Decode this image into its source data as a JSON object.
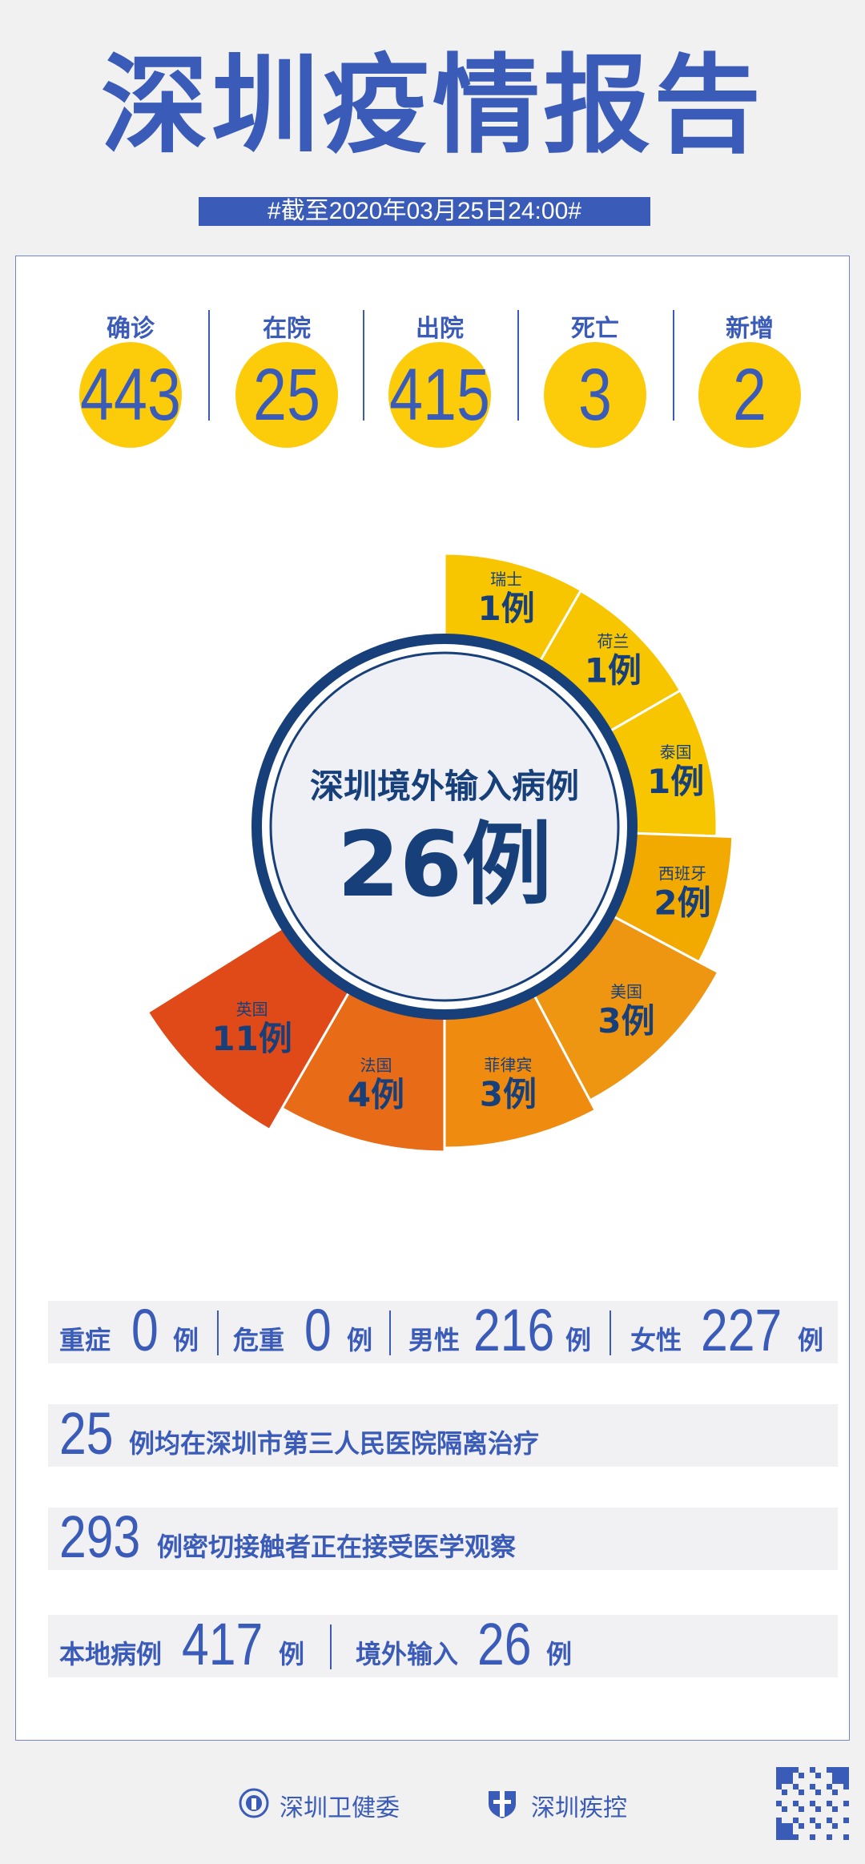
{
  "header": {
    "title": "深圳疫情报告",
    "date": "#截至2020年03月25日24:00#"
  },
  "stats": [
    {
      "label": "确诊",
      "value": "443"
    },
    {
      "label": "在院",
      "value": "25"
    },
    {
      "label": "出院",
      "value": "415"
    },
    {
      "label": "死亡",
      "value": "3"
    },
    {
      "label": "新增",
      "value": "2"
    }
  ],
  "chart_data": {
    "type": "pie",
    "title": "深圳境外输入病例",
    "total": "26例",
    "unit": "例",
    "categories": [
      "瑞士",
      "荷兰",
      "泰国",
      "西班牙",
      "美国",
      "菲律宾",
      "法国",
      "英国"
    ],
    "values": [
      1,
      1,
      1,
      2,
      3,
      3,
      4,
      11
    ],
    "colors": [
      "#f8c600",
      "#f8c600",
      "#f8c600",
      "#f2a900",
      "#ee9612",
      "#ef8c10",
      "#e86b18",
      "#e04a18"
    ],
    "center_color": "#173f7a"
  },
  "rows": {
    "severity": {
      "l1": "重症",
      "v1": "0",
      "u1": "例",
      "l2": "危重",
      "v2": "0",
      "u2": "例",
      "l3": "男性",
      "v3": "216",
      "u3": "例",
      "l4": "女性",
      "v4": "227",
      "u4": "例"
    },
    "hospital": {
      "value": "25",
      "text": "例均在深圳市第三人民医院隔离治疗"
    },
    "contacts": {
      "value": "293",
      "text": "例密切接触者正在接受医学观察"
    },
    "origin": {
      "l1": "本地病例",
      "v1": "417",
      "u1": "例",
      "l2": "境外输入",
      "v2": "26",
      "u2": "例"
    }
  },
  "footer": {
    "org1": "深圳卫健委",
    "org2": "深圳疾控"
  },
  "colors": {
    "brand_blue": "#3a5bb8",
    "yellow": "#fccc0a",
    "navy": "#173f7a"
  }
}
